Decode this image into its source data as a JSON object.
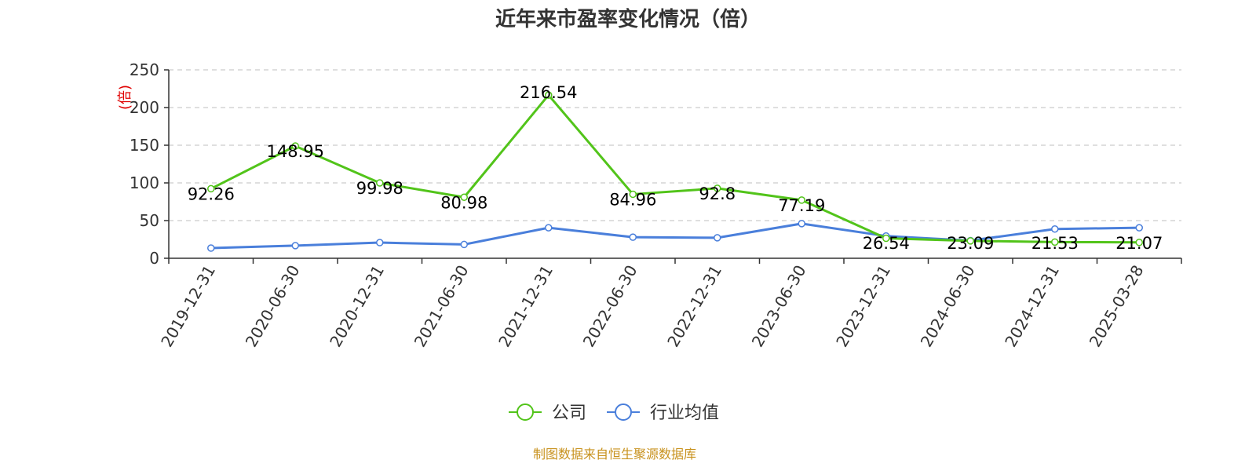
{
  "chart_data": {
    "type": "line",
    "title": "近年来市盈率变化情况（倍）",
    "ylabel": "(倍)",
    "xlabel": "",
    "categories": [
      "2019-12-31",
      "2020-06-30",
      "2020-12-31",
      "2021-06-30",
      "2021-12-31",
      "2022-06-30",
      "2022-12-31",
      "2023-06-30",
      "2023-12-31",
      "2024-06-30",
      "2024-12-31",
      "2025-03-28"
    ],
    "ylim": [
      0,
      250
    ],
    "yticks": [
      0,
      50,
      100,
      150,
      200,
      250
    ],
    "grid": true,
    "legend_position": "bottom-center",
    "series": [
      {
        "name": "公司",
        "color": "#52c41a",
        "values": [
          92.26,
          148.95,
          99.98,
          80.98,
          216.54,
          84.96,
          92.8,
          77.19,
          26.54,
          23.09,
          21.53,
          21.07
        ],
        "labels": [
          "92.26",
          "148.95",
          "99.98",
          "80.98",
          "216.54",
          "84.96",
          "92.8",
          "77.19",
          "26.54",
          "23.09",
          "21.53",
          "21.07"
        ]
      },
      {
        "name": "行业均值",
        "color": "#4a7fdb",
        "values": [
          13.5,
          16.8,
          20.8,
          18.3,
          40.5,
          28.0,
          27.2,
          46.0,
          29.5,
          23.5,
          38.8,
          40.5
        ]
      }
    ]
  },
  "source_note": "制图数据来自恒生聚源数据库"
}
